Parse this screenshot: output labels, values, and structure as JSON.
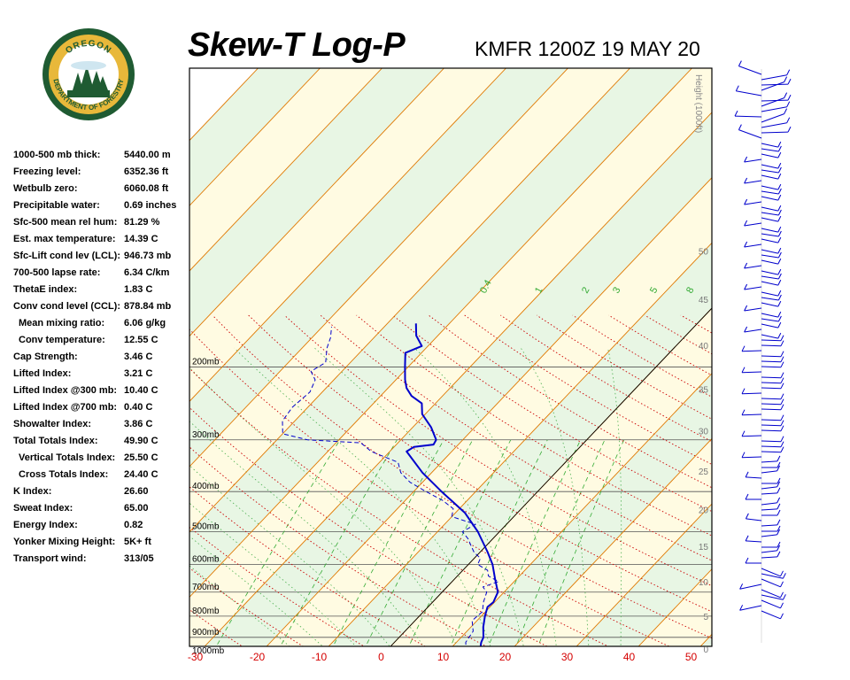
{
  "header": {
    "title": "Skew-T Log-P",
    "station_time": "KMFR 1200Z 19 MAY 20"
  },
  "logo": {
    "top_text": "OREGON",
    "bottom_text": "DEPARTMENT OF FORESTRY"
  },
  "indices": [
    {
      "label": "1000-500 mb thick:",
      "value": "5440.00 m",
      "indent": false
    },
    {
      "label": "Freezing level:",
      "value": "6352.36 ft",
      "indent": false
    },
    {
      "label": "Wetbulb zero:",
      "value": "6060.08 ft",
      "indent": false
    },
    {
      "label": "Precipitable water:",
      "value": "0.69 inches",
      "indent": false
    },
    {
      "label": "Sfc-500 mean rel hum:",
      "value": "81.29 %",
      "indent": false
    },
    {
      "label": "Est. max temperature:",
      "value": "14.39 C",
      "indent": false
    },
    {
      "label": "Sfc-Lift cond lev (LCL):",
      "value": "946.73 mb",
      "indent": false
    },
    {
      "label": "700-500 lapse rate:",
      "value": "6.34 C/km",
      "indent": false
    },
    {
      "label": "ThetaE index:",
      "value": "1.83 C",
      "indent": false
    },
    {
      "label": "Conv cond level (CCL):",
      "value": "878.84 mb",
      "indent": false
    },
    {
      "label": "Mean mixing ratio:",
      "value": "6.06 g/kg",
      "indent": true
    },
    {
      "label": "Conv temperature:",
      "value": "12.55 C",
      "indent": true
    },
    {
      "label": "Cap Strength:",
      "value": "3.46 C",
      "indent": false
    },
    {
      "label": "Lifted Index:",
      "value": "3.21 C",
      "indent": false
    },
    {
      "label": "Lifted Index @300 mb:",
      "value": "10.40 C",
      "indent": false
    },
    {
      "label": "Lifted Index @700 mb:",
      "value": "0.40 C",
      "indent": false
    },
    {
      "label": "Showalter Index:",
      "value": "3.86 C",
      "indent": false
    },
    {
      "label": "Total Totals Index:",
      "value": "49.90 C",
      "indent": false
    },
    {
      "label": "Vertical Totals Index:",
      "value": "25.50 C",
      "indent": true
    },
    {
      "label": "Cross Totals Index:",
      "value": "24.40 C",
      "indent": true
    },
    {
      "label": "K Index:",
      "value": "26.60",
      "indent": false
    },
    {
      "label": "Sweat Index:",
      "value": "65.00",
      "indent": false
    },
    {
      "label": "Energy Index:",
      "value": "0.82",
      "indent": false
    },
    {
      "label": "Yonker Mixing Height:",
      "value": "5K+ ft",
      "indent": false
    },
    {
      "label": "Transport wind:",
      "value": "313/05",
      "indent": false
    }
  ],
  "chart_data": {
    "type": "line",
    "x_ticks": [
      -30,
      -20,
      -10,
      0,
      10,
      20,
      30,
      40,
      50
    ],
    "pressure_levels": [
      200,
      300,
      400,
      500,
      600,
      700,
      800,
      900,
      1000
    ],
    "pressure_labels": [
      "200mb",
      "300mb",
      "400mb",
      "500mb",
      "600mb",
      "700mb",
      "800mb",
      "900mb",
      "1000mb"
    ],
    "height_label": "Height (1000ft)",
    "height_ticks": [
      0,
      5,
      10,
      15,
      20,
      25,
      30,
      35,
      40,
      45,
      50
    ],
    "mixing_ratio_labels": [
      "0.4",
      "1",
      "2",
      "3",
      "5",
      "8"
    ],
    "colors": {
      "temperature": "#0000cc",
      "dewpoint": "#0000cc",
      "isotherm": "#e07800",
      "dry_adiabat": "#cc0000",
      "moist_adiabat": "#4caf50",
      "mixing_ratio": "#33aa33",
      "isobar": "#555555",
      "band_green": "#e8f6e4",
      "band_yellow": "#fffbe2",
      "axis_label": "#d40000",
      "wind_barb": "#0000cc"
    },
    "series": [
      {
        "style": "solid",
        "points": [
          {
            "p": 975,
            "t": 15.2
          },
          {
            "p": 925,
            "t": 14.0
          },
          {
            "p": 900,
            "t": 13.6
          },
          {
            "p": 850,
            "t": 12.0
          },
          {
            "p": 800,
            "t": 10.6
          },
          {
            "p": 760,
            "t": 9.6
          },
          {
            "p": 740,
            "t": 9.8
          },
          {
            "p": 700,
            "t": 9.0
          },
          {
            "p": 650,
            "t": 6.5
          },
          {
            "p": 600,
            "t": 3.9
          },
          {
            "p": 560,
            "t": 1.2
          },
          {
            "p": 500,
            "t": -3.5
          },
          {
            "p": 450,
            "t": -8.5
          },
          {
            "p": 400,
            "t": -15.5
          },
          {
            "p": 360,
            "t": -21.5
          },
          {
            "p": 320,
            "t": -27.3
          },
          {
            "p": 312,
            "t": -26.8
          },
          {
            "p": 308,
            "t": -24.0
          },
          {
            "p": 300,
            "t": -24.3
          },
          {
            "p": 280,
            "t": -27.0
          },
          {
            "p": 260,
            "t": -30.5
          },
          {
            "p": 245,
            "t": -32.2
          },
          {
            "p": 235,
            "t": -35.0
          },
          {
            "p": 225,
            "t": -37.0
          },
          {
            "p": 215,
            "t": -38.5
          },
          {
            "p": 200,
            "t": -40.5
          },
          {
            "p": 185,
            "t": -42.6
          },
          {
            "p": 178,
            "t": -41.0
          },
          {
            "p": 168,
            "t": -43.5
          },
          {
            "p": 157,
            "t": -45.4
          }
        ]
      },
      {
        "style": "dashed",
        "points": [
          {
            "p": 975,
            "t": 13.0
          },
          {
            "p": 925,
            "t": 11.5
          },
          {
            "p": 870,
            "t": 11.0
          },
          {
            "p": 820,
            "t": 9.2
          },
          {
            "p": 780,
            "t": 9.5
          },
          {
            "p": 740,
            "t": 8.2
          },
          {
            "p": 700,
            "t": 7.2
          },
          {
            "p": 680,
            "t": 5.8
          },
          {
            "p": 660,
            "t": 7.5
          },
          {
            "p": 640,
            "t": 5.0
          },
          {
            "p": 620,
            "t": 4.0
          },
          {
            "p": 600,
            "t": 1.5
          },
          {
            "p": 580,
            "t": 1.0
          },
          {
            "p": 560,
            "t": -1.0
          },
          {
            "p": 540,
            "t": -2.5
          },
          {
            "p": 520,
            "t": -4.0
          },
          {
            "p": 500,
            "t": -6.0
          },
          {
            "p": 480,
            "t": -5.0
          },
          {
            "p": 460,
            "t": -10.0
          },
          {
            "p": 440,
            "t": -11.0
          },
          {
            "p": 420,
            "t": -14.0
          },
          {
            "p": 400,
            "t": -18.0
          },
          {
            "p": 380,
            "t": -22.0
          },
          {
            "p": 360,
            "t": -25.0
          },
          {
            "p": 340,
            "t": -27.0
          },
          {
            "p": 320,
            "t": -33.0
          },
          {
            "p": 305,
            "t": -36.0
          },
          {
            "p": 300,
            "t": -45.0
          },
          {
            "p": 290,
            "t": -50.0
          },
          {
            "p": 270,
            "t": -52.0
          },
          {
            "p": 250,
            "t": -52.5
          },
          {
            "p": 230,
            "t": -52.0
          },
          {
            "p": 215,
            "t": -53.0
          },
          {
            "p": 205,
            "t": -55.0
          },
          {
            "p": 195,
            "t": -54.0
          },
          {
            "p": 180,
            "t": -56.0
          },
          {
            "p": 170,
            "t": -57.0
          },
          {
            "p": 160,
            "t": -58.5
          }
        ]
      }
    ]
  }
}
